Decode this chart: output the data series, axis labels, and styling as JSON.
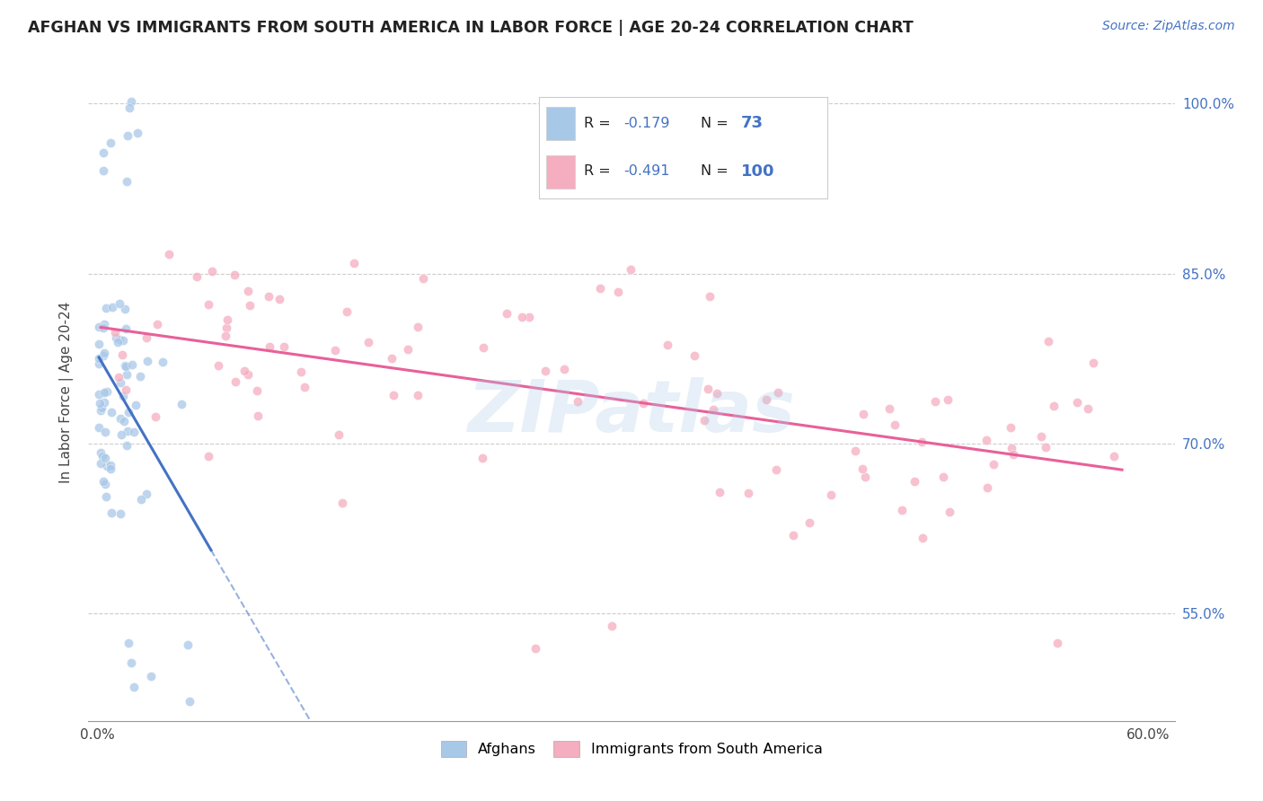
{
  "title": "AFGHAN VS IMMIGRANTS FROM SOUTH AMERICA IN LABOR FORCE | AGE 20-24 CORRELATION CHART",
  "source": "Source: ZipAtlas.com",
  "ylabel": "In Labor Force | Age 20-24",
  "xlim": [
    -0.005,
    0.615
  ],
  "ylim": [
    0.455,
    1.035
  ],
  "xtick_positions": [
    0.0,
    0.1,
    0.2,
    0.3,
    0.4,
    0.5,
    0.6
  ],
  "xticklabels": [
    "0.0%",
    "",
    "",
    "",
    "",
    "",
    "60.0%"
  ],
  "ytick_positions": [
    0.55,
    0.7,
    0.85,
    1.0
  ],
  "yticklabels": [
    "55.0%",
    "70.0%",
    "85.0%",
    "100.0%"
  ],
  "r_afghan": -0.179,
  "n_afghan": 73,
  "r_sa": -0.491,
  "n_sa": 100,
  "color_afghan": "#a8c8e8",
  "color_sa": "#f5adc0",
  "color_line_afghan": "#4472c4",
  "color_line_sa": "#e8609a",
  "color_axis": "#4472c4",
  "watermark": "ZIPatlas",
  "background": "#ffffff",
  "scatter_alpha": 0.75,
  "scatter_size": 55
}
